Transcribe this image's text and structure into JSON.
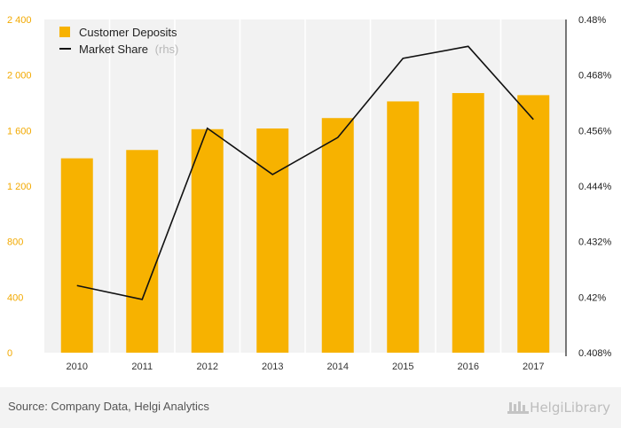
{
  "chart_data": {
    "type": "bar+line",
    "categories": [
      "2010",
      "2011",
      "2012",
      "2013",
      "2014",
      "2015",
      "2016",
      "2017"
    ],
    "series": [
      {
        "name": "Customer Deposits",
        "type": "bar",
        "axis": "left",
        "color": "#f7b200",
        "values": [
          1400,
          1460,
          1610,
          1615,
          1690,
          1810,
          1870,
          1855
        ]
      },
      {
        "name": "Market Share",
        "legend_suffix": "(rhs)",
        "type": "line",
        "axis": "right",
        "color": "#111111",
        "values": [
          0.4225,
          0.4195,
          0.4565,
          0.4465,
          0.4545,
          0.4716,
          0.4742,
          0.4584
        ]
      }
    ],
    "left_axis": {
      "ylim": [
        0,
        2400
      ],
      "ticks": [
        0,
        400,
        800,
        1200,
        1600,
        2000,
        2400
      ],
      "tick_labels": [
        "0",
        "400",
        "800",
        "1 200",
        "1 600",
        "2 000",
        "2 400"
      ],
      "color": "#f2a900"
    },
    "right_axis": {
      "ylim": [
        0.408,
        0.48
      ],
      "ticks": [
        0.408,
        0.42,
        0.432,
        0.444,
        0.456,
        0.468,
        0.48
      ],
      "tick_labels": [
        "0.408%",
        "0.42%",
        "0.432%",
        "0.444%",
        "0.456%",
        "0.468%",
        "0.48%"
      ]
    },
    "legend_position": "top-left",
    "grid": false
  },
  "legend": {
    "deposits_label": "Customer Deposits",
    "share_label": "Market Share",
    "share_suffix": "(rhs)"
  },
  "footer": {
    "source": "Source: Company Data, Helgi Analytics",
    "brand": "HelgiLibrary"
  }
}
